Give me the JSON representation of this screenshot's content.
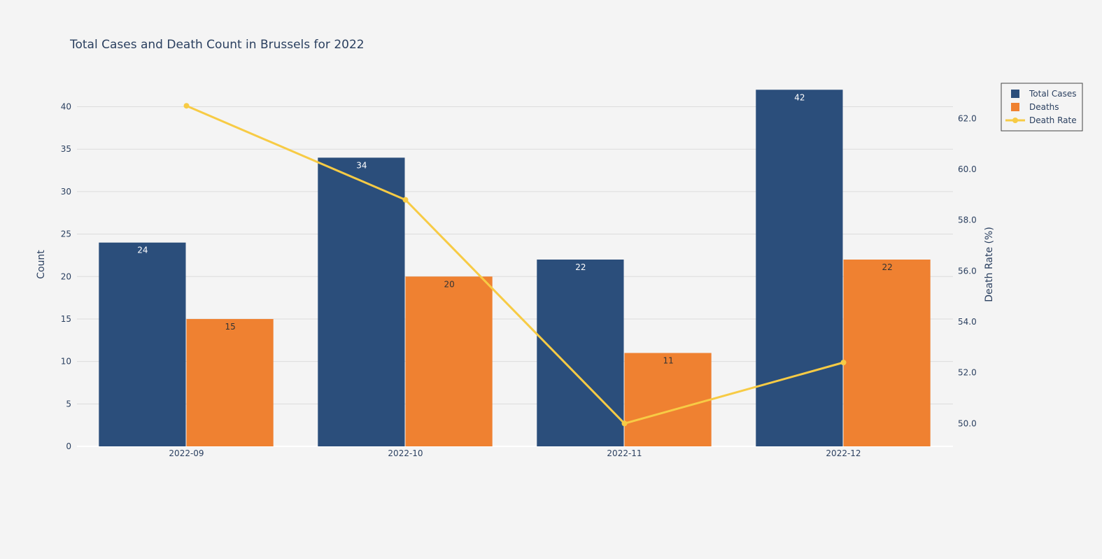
{
  "chart_data": {
    "type": "bar",
    "title": "Total Cases and Death Count in Brussels for 2022",
    "categories": [
      "2022-09",
      "2022-10",
      "2022-11",
      "2022-12"
    ],
    "ylabel": "Count",
    "y2label": "Death Rate (%)",
    "ylim": [
      0,
      44
    ],
    "y2lim": [
      49.1,
      63.8
    ],
    "yticks": [
      0,
      5,
      10,
      15,
      20,
      25,
      30,
      35,
      40
    ],
    "y2ticks": [
      "50.0",
      "52.0",
      "54.0",
      "56.0",
      "58.0",
      "60.0",
      "62.0"
    ],
    "grid": true,
    "legend_position": "top-right",
    "series": [
      {
        "name": "Total Cases",
        "type": "bar",
        "axis": "y",
        "color": "#2b4e7b",
        "label_color": "#ffffff",
        "values": [
          24,
          34,
          22,
          42
        ]
      },
      {
        "name": "Deaths",
        "type": "bar",
        "axis": "y",
        "color": "#ef8131",
        "label_color": "#333333",
        "values": [
          15,
          20,
          11,
          22
        ]
      },
      {
        "name": "Death Rate",
        "type": "line",
        "axis": "y2",
        "color": "#f7cb45",
        "values": [
          62.5,
          58.8,
          50.0,
          52.4
        ]
      }
    ]
  }
}
